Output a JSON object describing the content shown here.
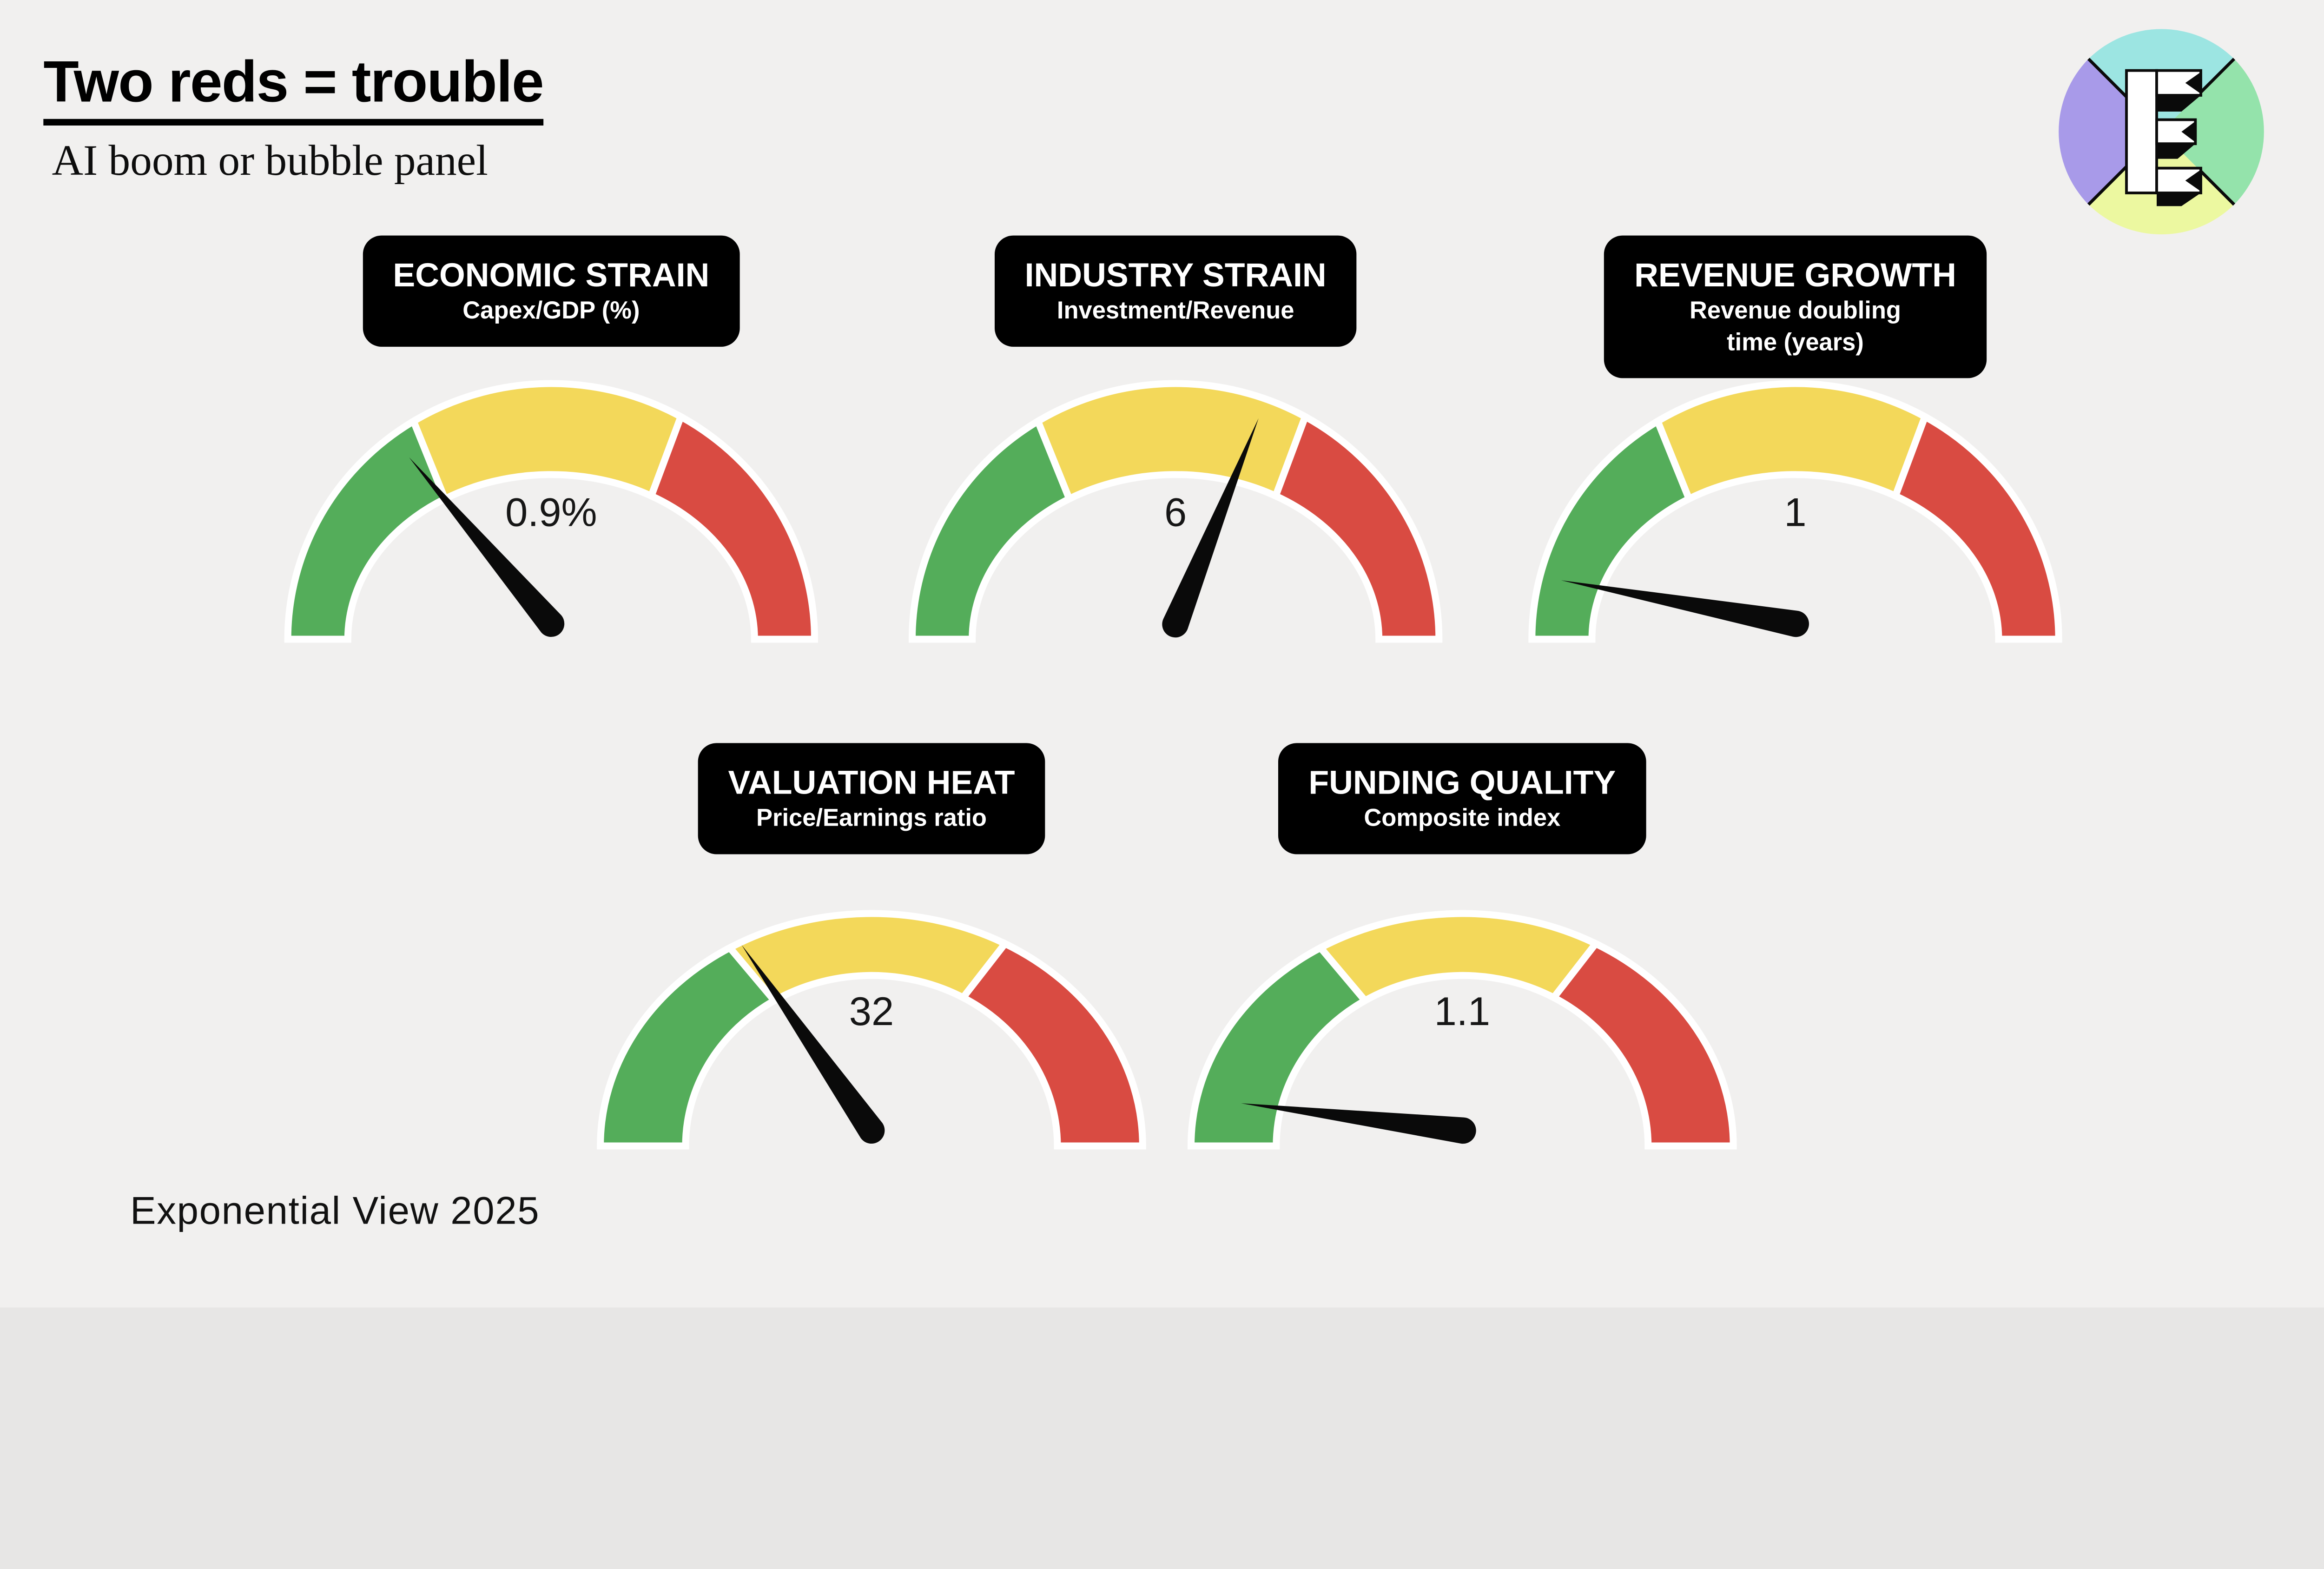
{
  "page": {
    "background_color": "#f1f0ef"
  },
  "header": {
    "title": "Two reds = trouble",
    "subtitle": "AI boom or bubble panel"
  },
  "branding": {
    "logo_name": "exponential-view-e-logo",
    "footer_credit": "Exponential View 2025",
    "logo_colors": {
      "top": "#9ce5e2",
      "left": "#a89ae9",
      "right": "#94e3ab",
      "bottom": "#ecf8a0"
    }
  },
  "chart_data": {
    "type": "gauge-panel",
    "title": "Two reds = trouble",
    "subtitle": "AI boom or bubble panel",
    "description": "Five semicircular traffic-light gauges (green / yellow / red zones); needles show current readings of the AI boom-or-bubble panel",
    "zone_colors": {
      "green": "#54ad5a",
      "yellow": "#f3d85a",
      "red": "#d94b42"
    },
    "zones": [
      {
        "name": "green",
        "from_deg": 180,
        "to_deg": 121.5
      },
      {
        "name": "yellow",
        "from_deg": 121.5,
        "to_deg": 60.5
      },
      {
        "name": "red",
        "from_deg": 60.5,
        "to_deg": 0
      }
    ],
    "gauges": [
      {
        "title": "ECONOMIC STRAIN",
        "subtitle_lines": [
          "Capex/GDP (%)"
        ],
        "value": 0.9,
        "value_label": "0.9%",
        "needle_zone": "green",
        "needle_angle_deg": 130.5,
        "needle_length": 565
      },
      {
        "title": "INDUSTRY STRAIN",
        "subtitle_lines": [
          "Investment/Revenue"
        ],
        "value": 6,
        "value_label": "6",
        "needle_zone": "yellow",
        "needle_angle_deg": 68,
        "needle_length": 572
      },
      {
        "title": "REVENUE GROWTH",
        "subtitle_lines": [
          "Revenue doubling",
          "time (years)"
        ],
        "value": 1,
        "value_label": "1",
        "needle_zone": "green",
        "needle_angle_deg": 169.5,
        "needle_length": 615
      },
      {
        "title": "VALUATION HEAT",
        "subtitle_lines": [
          "Price/Earnings ratio"
        ],
        "value": 32,
        "value_label": "32",
        "needle_zone": "green",
        "needle_angle_deg": 125,
        "needle_length": 585
      },
      {
        "title": "FUNDING QUALITY",
        "subtitle_lines": [
          "Composite index"
        ],
        "value": 1.1,
        "value_label": "1.1",
        "needle_zone": "green",
        "needle_angle_deg": 173,
        "needle_length": 575
      }
    ]
  }
}
